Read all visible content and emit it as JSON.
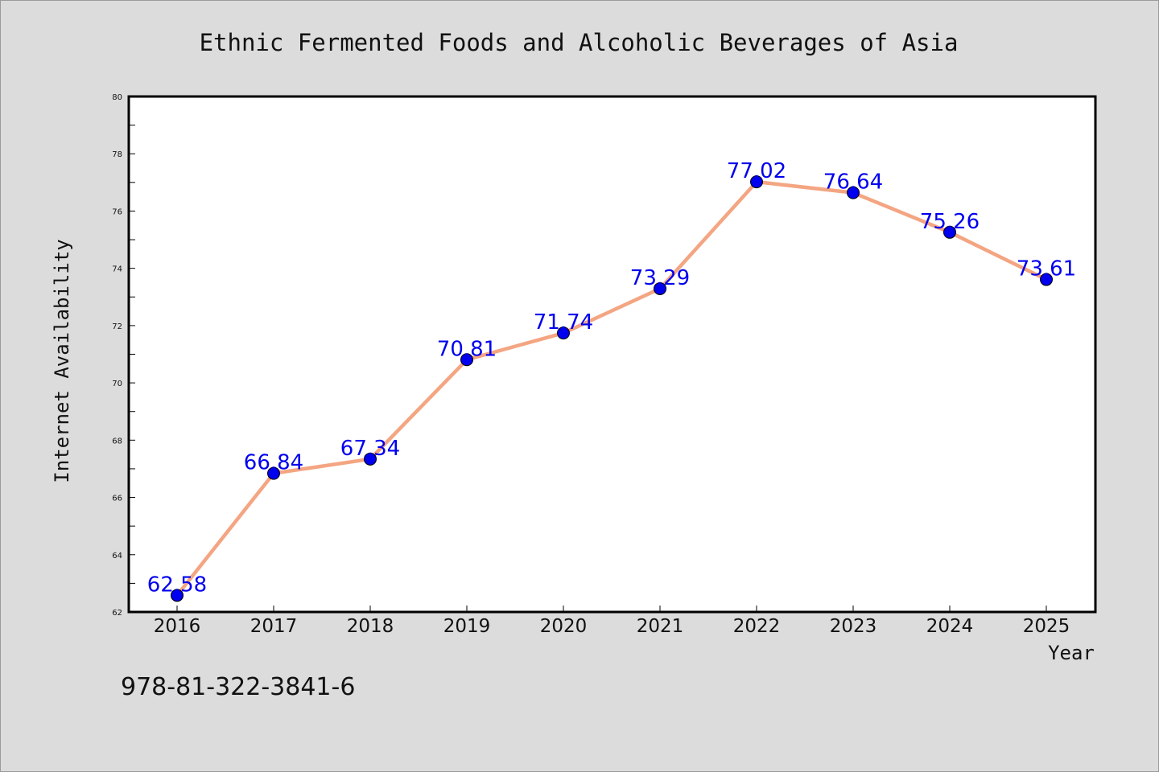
{
  "chart_data": {
    "type": "line",
    "title": "Ethnic Fermented Foods and Alcoholic Beverages of Asia",
    "xlabel": "Year",
    "ylabel": "Internet Availability",
    "x": [
      2016,
      2017,
      2018,
      2019,
      2020,
      2021,
      2022,
      2023,
      2024,
      2025
    ],
    "series": [
      {
        "values": [
          62.58,
          66.84,
          67.34,
          70.81,
          71.74,
          73.29,
          77.02,
          76.64,
          75.26,
          73.61
        ]
      }
    ],
    "data_labels": [
      "62.58",
      "66.84",
      "67.34",
      "70.81",
      "71.74",
      "73.29",
      "77.02",
      "76.64",
      "75.26",
      "73.61"
    ],
    "ylim": [
      62,
      80
    ],
    "yticks": [
      62,
      64,
      66,
      68,
      70,
      72,
      74,
      76,
      78,
      80
    ],
    "grid": false,
    "legend": "none",
    "colors": {
      "line": "#f4a582",
      "marker": "#0000ee",
      "label": "#0000ee",
      "plot_background": "#ffffff",
      "figure_background": "#dcdcdc"
    }
  },
  "footer_text": "978-81-322-3841-6"
}
